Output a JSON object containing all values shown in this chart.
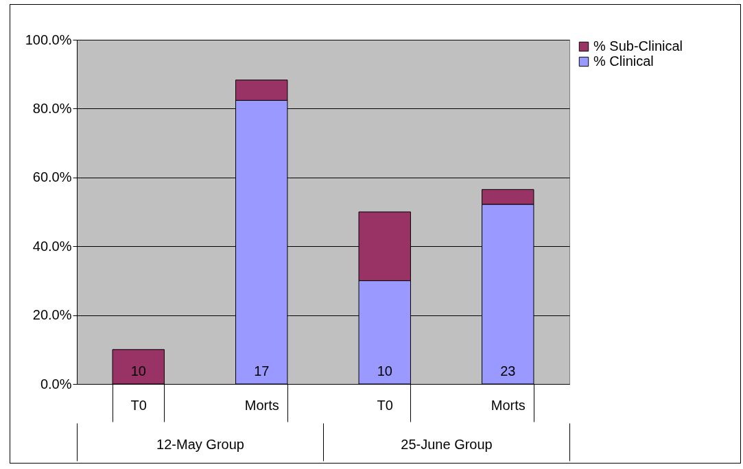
{
  "chart_data": {
    "type": "bar",
    "stacked": true,
    "categories": [
      "T0",
      "Morts",
      "T0",
      "Morts"
    ],
    "series": [
      {
        "name": "% Clinical",
        "color": "#9999ff",
        "values": [
          0,
          82.4,
          30,
          52.2
        ]
      },
      {
        "name": "% Sub-Clinical",
        "color": "#993366",
        "values": [
          10,
          5.9,
          20,
          4.3
        ]
      }
    ],
    "annotations": [
      "12-May Group",
      "25-June Group",
      "10",
      "17",
      "10",
      "23"
    ],
    "ylim": [
      0,
      100
    ],
    "yticks": [
      {
        "value": 0,
        "label": "0.0%"
      },
      {
        "value": 20,
        "label": "20.0%"
      },
      {
        "value": 40,
        "label": "40.0%"
      },
      {
        "value": 60,
        "label": "60.0%"
      },
      {
        "value": 80,
        "label": "80.0%"
      },
      {
        "value": 100,
        "label": "100.0%"
      }
    ],
    "grid": "y",
    "legend": "right"
  }
}
